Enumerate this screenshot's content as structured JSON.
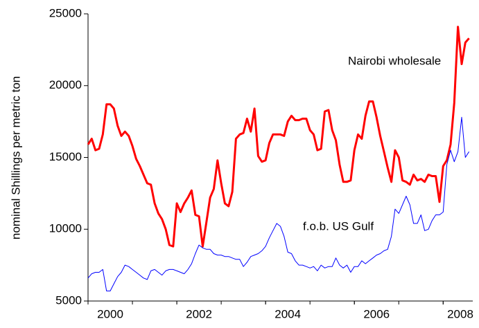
{
  "chart_data": {
    "type": "line",
    "y_label": "nominal Shillings per metric ton",
    "annotations": [
      "Nairobi wholesale",
      "f.o.b. US Gulf"
    ],
    "x": [
      2000,
      2000.083,
      2000.167,
      2000.25,
      2000.333,
      2000.417,
      2000.5,
      2000.583,
      2000.667,
      2000.75,
      2000.833,
      2000.917,
      2001,
      2001.083,
      2001.167,
      2001.25,
      2001.333,
      2001.417,
      2001.5,
      2001.583,
      2001.667,
      2001.75,
      2001.833,
      2001.917,
      2002,
      2002.083,
      2002.167,
      2002.25,
      2002.333,
      2002.417,
      2002.5,
      2002.583,
      2002.667,
      2002.75,
      2002.833,
      2002.917,
      2003,
      2003.083,
      2003.167,
      2003.25,
      2003.333,
      2003.417,
      2003.5,
      2003.583,
      2003.667,
      2003.75,
      2003.833,
      2003.917,
      2004,
      2004.083,
      2004.167,
      2004.25,
      2004.333,
      2004.417,
      2004.5,
      2004.583,
      2004.667,
      2004.75,
      2004.833,
      2004.917,
      2005,
      2005.083,
      2005.167,
      2005.25,
      2005.333,
      2005.417,
      2005.5,
      2005.583,
      2005.667,
      2005.75,
      2005.833,
      2005.917,
      2006,
      2006.083,
      2006.167,
      2006.25,
      2006.333,
      2006.417,
      2006.5,
      2006.583,
      2006.667,
      2006.75,
      2006.833,
      2006.917,
      2007,
      2007.083,
      2007.167,
      2007.25,
      2007.333,
      2007.417,
      2007.5,
      2007.583,
      2007.667,
      2007.75,
      2007.833,
      2007.917,
      2008,
      2008.083,
      2008.167,
      2008.25,
      2008.333,
      2008.417,
      2008.5,
      2008.583
    ],
    "series": [
      {
        "name": "Nairobi wholesale",
        "color": "#ff0000",
        "width": 3,
        "values": [
          15900,
          16300,
          15500,
          15600,
          16600,
          18700,
          18700,
          18400,
          17200,
          16500,
          16800,
          16500,
          15800,
          14900,
          14400,
          13800,
          13200,
          13100,
          11800,
          11100,
          10700,
          10000,
          8900,
          8800,
          11800,
          11200,
          11800,
          12200,
          12700,
          11000,
          10900,
          8800,
          10500,
          12200,
          12800,
          14800,
          13200,
          11800,
          11600,
          12600,
          16300,
          16600,
          16700,
          17700,
          16800,
          18400,
          15100,
          14700,
          14800,
          16000,
          16600,
          16600,
          16600,
          16500,
          17500,
          17900,
          17600,
          17600,
          17700,
          17700,
          16900,
          16600,
          15500,
          15600,
          18200,
          18300,
          16900,
          16200,
          14500,
          13300,
          13300,
          13400,
          15500,
          16600,
          16300,
          17900,
          18900,
          18900,
          17800,
          16500,
          15400,
          14300,
          13300,
          15500,
          15000,
          13400,
          13300,
          13100,
          13800,
          13400,
          13500,
          13300,
          13800,
          13700,
          13700,
          11900,
          14400,
          14800,
          15900,
          18800,
          24100,
          21500,
          23000,
          23300
        ]
      },
      {
        "name": "f.o.b. US Gulf",
        "color": "#0000ff",
        "width": 1,
        "values": [
          6600,
          6900,
          7000,
          7000,
          7200,
          5700,
          5700,
          6200,
          6700,
          7000,
          7500,
          7400,
          7200,
          7000,
          6800,
          6600,
          6500,
          7100,
          7200,
          7000,
          6800,
          7100,
          7200,
          7200,
          7100,
          7000,
          6900,
          7200,
          7600,
          8300,
          8900,
          8700,
          8600,
          8600,
          8300,
          8200,
          8200,
          8100,
          8100,
          8000,
          7900,
          7900,
          7400,
          7700,
          8100,
          8200,
          8300,
          8500,
          8800,
          9400,
          9900,
          10400,
          10200,
          9500,
          8400,
          8300,
          7800,
          7500,
          7500,
          7400,
          7300,
          7400,
          7100,
          7500,
          7300,
          7400,
          7400,
          8000,
          7500,
          7300,
          7500,
          7000,
          7400,
          7400,
          7800,
          7600,
          7800,
          8000,
          8200,
          8300,
          8500,
          8600,
          9500,
          11400,
          11100,
          11700,
          12300,
          11700,
          10400,
          10400,
          11000,
          9900,
          10000,
          10600,
          11000,
          11000,
          11200,
          14500,
          15500,
          14700,
          15400,
          17800,
          15000,
          15400
        ]
      }
    ],
    "xlim": [
      2000,
      2008.667
    ],
    "xticks": [
      2000,
      2002,
      2004,
      2006,
      2008
    ],
    "ylim": [
      5000,
      25000
    ],
    "yticks": [
      5000,
      10000,
      15000,
      20000,
      25000
    ]
  }
}
